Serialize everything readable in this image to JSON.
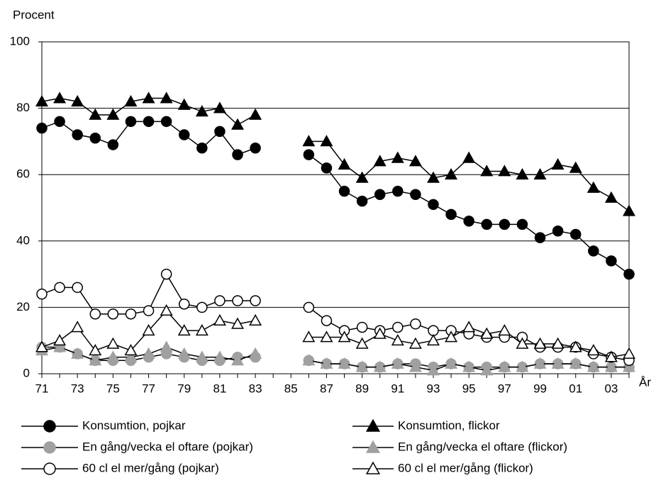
{
  "chart_data": {
    "type": "line",
    "y_label": "Procent",
    "x_label": "År",
    "categories": [
      "71",
      null,
      "73",
      null,
      "75",
      null,
      "77",
      null,
      "79",
      null,
      "81",
      null,
      "83",
      null,
      "85",
      null,
      "87",
      null,
      "89",
      null,
      "91",
      null,
      "93",
      null,
      "95",
      null,
      "97",
      null,
      "99",
      null,
      "01",
      null,
      "03",
      null
    ],
    "ylim": [
      0,
      100
    ],
    "yticks": [
      0,
      20,
      40,
      60,
      80,
      100
    ],
    "grid": true,
    "series": [
      {
        "name": "Konsumtion, pojkar",
        "color": "#000000",
        "marker": "circle",
        "marker_fill": "#000000",
        "values": [
          74,
          76,
          72,
          71,
          69,
          76,
          76,
          76,
          72,
          68,
          73,
          66,
          68,
          null,
          null,
          66,
          62,
          55,
          52,
          54,
          55,
          54,
          51,
          48,
          46,
          45,
          45,
          45,
          41,
          43,
          42,
          37,
          34,
          30
        ]
      },
      {
        "name": "Konsumtion, flickor",
        "color": "#000000",
        "marker": "triangle",
        "marker_fill": "#000000",
        "values": [
          82,
          83,
          82,
          78,
          78,
          82,
          83,
          83,
          81,
          79,
          80,
          75,
          78,
          null,
          null,
          70,
          70,
          63,
          59,
          64,
          65,
          64,
          59,
          60,
          65,
          61,
          61,
          60,
          60,
          63,
          62,
          56,
          53,
          49
        ]
      },
      {
        "name": "En gång/vecka el oftare (pojkar)",
        "color": "#000000",
        "marker": "circle",
        "marker_fill": "#a0a0a0",
        "values": [
          8,
          8,
          6,
          4,
          4,
          4,
          5,
          6,
          5,
          4,
          4,
          5,
          5,
          null,
          null,
          4,
          3,
          3,
          2,
          2,
          3,
          3,
          2,
          3,
          2,
          2,
          2,
          2,
          3,
          3,
          3,
          2,
          2,
          2
        ]
      },
      {
        "name": "En gång/vecka el oftare (flickor)",
        "color": "#000000",
        "marker": "triangle",
        "marker_fill": "#a0a0a0",
        "values": [
          7,
          8,
          6,
          4,
          5,
          5,
          6,
          8,
          6,
          5,
          5,
          4,
          6,
          null,
          null,
          4,
          3,
          3,
          2,
          2,
          3,
          2,
          1,
          3,
          2,
          1,
          2,
          2,
          3,
          3,
          3,
          2,
          2,
          2
        ]
      },
      {
        "name": "60 cl el mer/gång (pojkar)",
        "color": "#000000",
        "marker": "circle",
        "marker_fill": "#ffffff",
        "values": [
          24,
          26,
          26,
          18,
          18,
          18,
          19,
          30,
          21,
          20,
          22,
          22,
          22,
          null,
          null,
          20,
          16,
          13,
          14,
          13,
          14,
          15,
          13,
          13,
          12,
          11,
          11,
          11,
          8,
          8,
          8,
          6,
          5,
          4
        ]
      },
      {
        "name": "60 cl el mer/gång (flickor)",
        "color": "#000000",
        "marker": "triangle",
        "marker_fill": "#ffffff",
        "values": [
          8,
          10,
          14,
          7,
          9,
          7,
          13,
          19,
          13,
          13,
          16,
          15,
          16,
          null,
          null,
          11,
          11,
          11,
          9,
          12,
          10,
          9,
          10,
          11,
          14,
          12,
          13,
          9,
          9,
          9,
          8,
          7,
          5,
          6
        ]
      }
    ]
  }
}
